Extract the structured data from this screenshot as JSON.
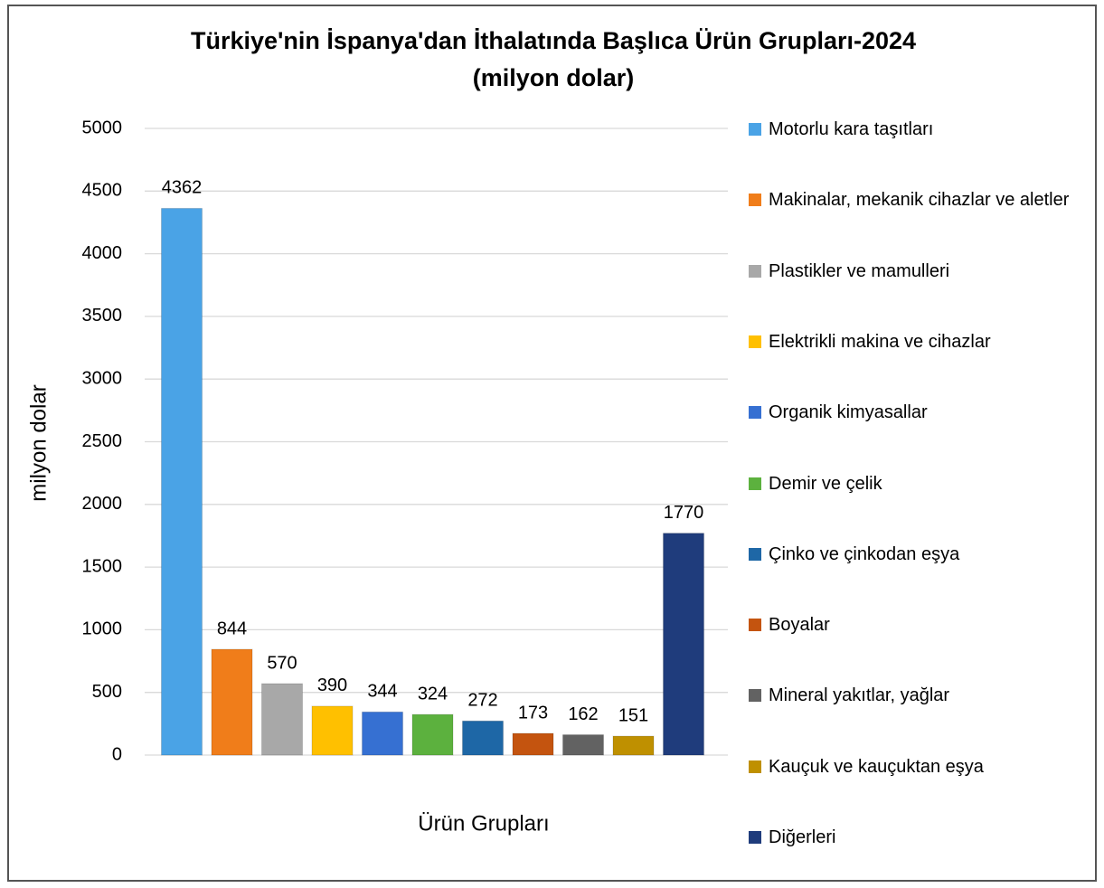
{
  "chart_data": {
    "type": "bar",
    "title": "Türkiye'nin İspanya'dan İthalatında Başlıca Ürün Grupları-2024",
    "subtitle": "(milyon dolar)",
    "x_label": "Ürün Grupları",
    "y_label": "milyon dolar",
    "categories": [
      "Motorlu kara taşıtları",
      "Makinalar, mekanik cihazlar ve aletler",
      "Plastikler ve mamulleri",
      "Elektrikli makina ve cihazlar",
      "Organik kimyasallar",
      "Demir ve çelik",
      "Çinko ve çinkodan eşya",
      "Boyalar",
      "Mineral yakıtlar, yağlar",
      "Kauçuk ve kauçuktan eşya",
      "Diğerleri"
    ],
    "values": [
      4362,
      844,
      570,
      390,
      344,
      324,
      272,
      173,
      162,
      151,
      1770
    ],
    "colors": [
      "#4aa3e6",
      "#f07d1a",
      "#a8a8a8",
      "#ffc000",
      "#3670d2",
      "#5cb13e",
      "#1e67a6",
      "#c4540f",
      "#626262",
      "#bf9000",
      "#1f3c7c"
    ],
    "ylim": [
      0,
      5000
    ],
    "yticks": [
      0,
      500,
      1000,
      1500,
      2000,
      2500,
      3000,
      3500,
      4000,
      4500,
      5000
    ],
    "grid": true,
    "legend": "right"
  }
}
